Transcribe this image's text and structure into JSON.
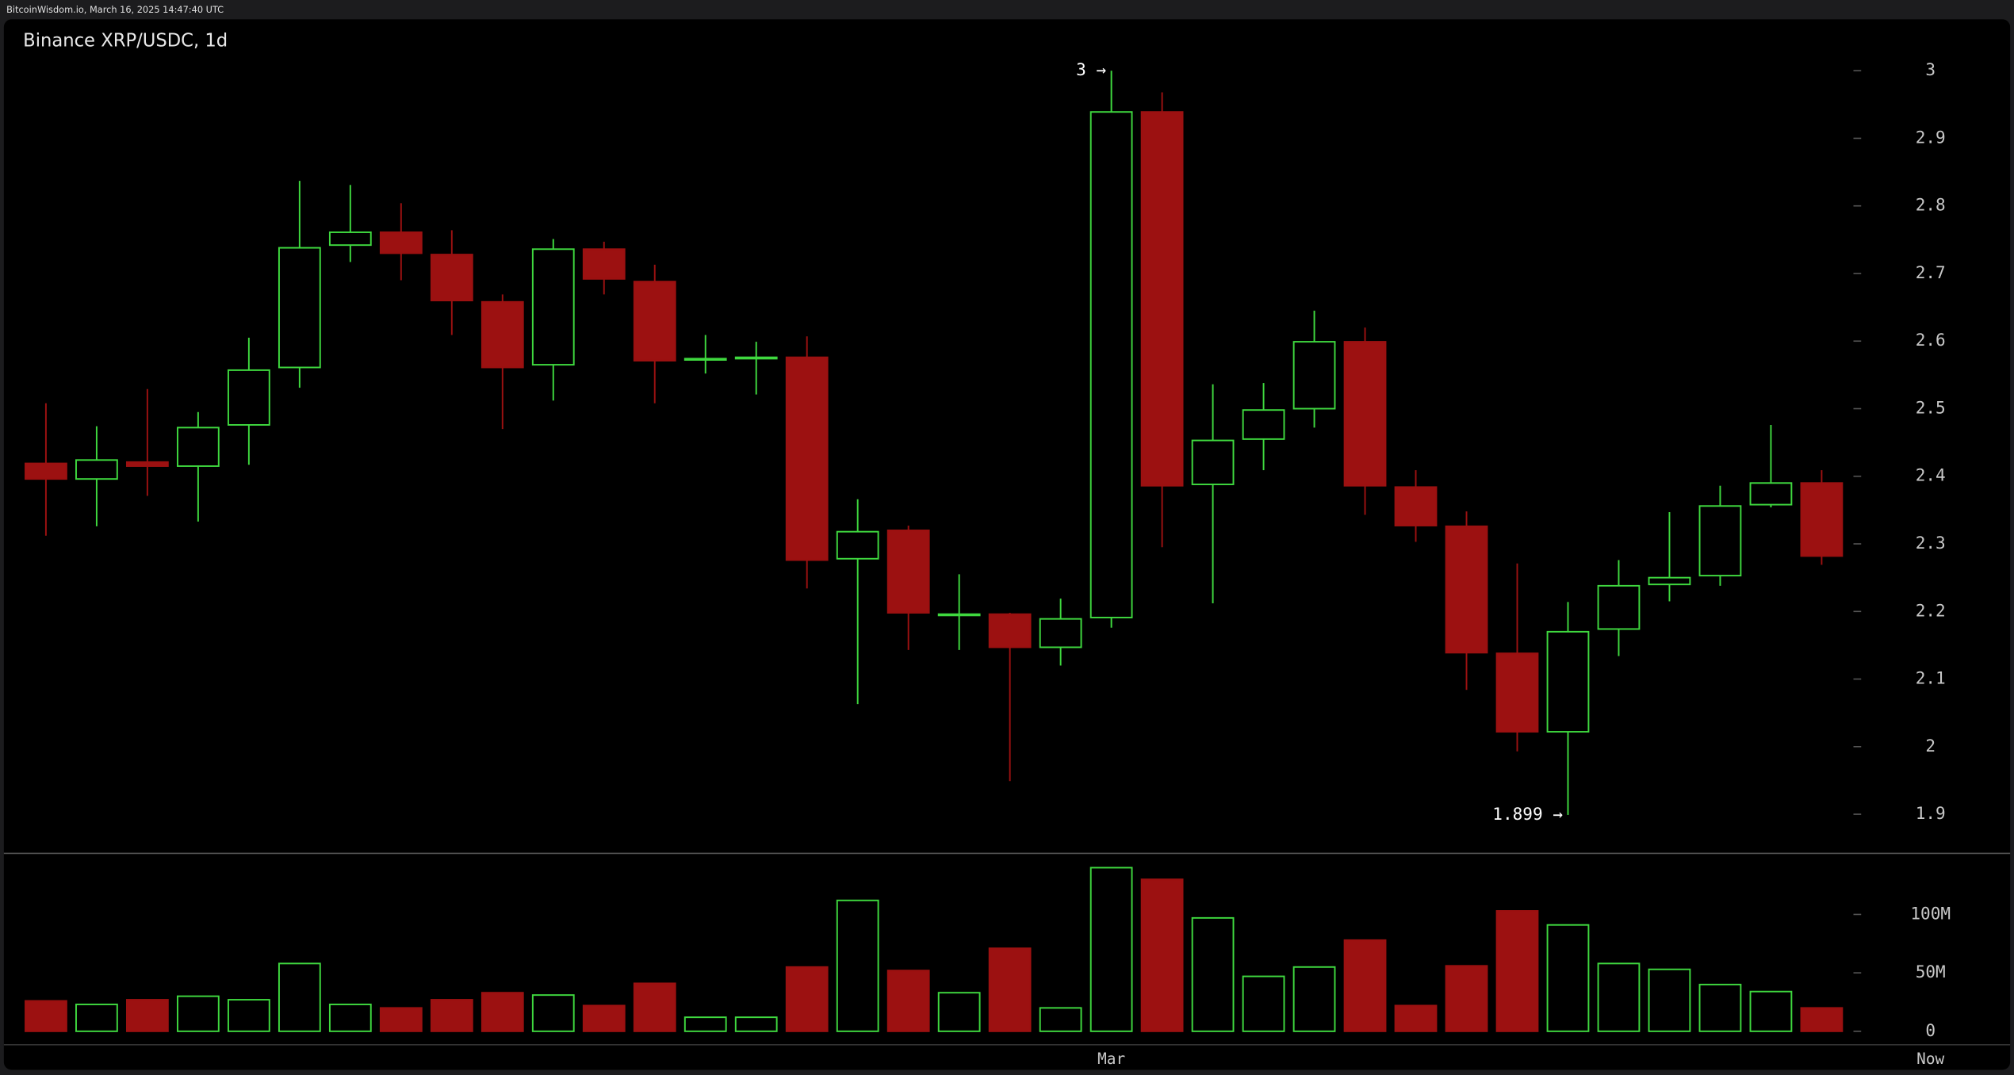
{
  "header": "BitcoinWisdom.io, March 16, 2025 14:47:40 UTC",
  "chart_data": {
    "type": "candlestick",
    "title": "Binance XRP/USDC, 1d",
    "categories": [
      null,
      null,
      null,
      null,
      null,
      null,
      null,
      null,
      null,
      null,
      null,
      null,
      null,
      null,
      null,
      null,
      null,
      null,
      null,
      null,
      null,
      "Mar",
      null,
      null,
      null,
      null,
      null,
      null,
      null,
      null,
      null,
      null,
      null,
      null,
      null,
      null
    ],
    "now_label": "Now",
    "open": [
      2.419,
      2.396,
      2.421,
      2.415,
      2.476,
      2.561,
      2.742,
      2.761,
      2.728,
      2.658,
      2.565,
      2.736,
      2.688,
      2.573,
      2.574,
      2.576,
      2.278,
      2.32,
      2.195,
      2.196,
      2.147,
      2.191,
      2.939,
      2.388,
      2.455,
      2.5,
      2.599,
      2.384,
      2.326,
      2.138,
      2.022,
      2.174,
      2.24,
      2.253,
      2.358,
      2.39
    ],
    "high": [
      2.508,
      2.474,
      2.529,
      2.495,
      2.605,
      2.837,
      2.831,
      2.804,
      2.764,
      2.669,
      2.751,
      2.747,
      2.713,
      2.609,
      2.599,
      2.607,
      2.366,
      2.327,
      2.255,
      2.198,
      2.219,
      3.0,
      2.968,
      2.536,
      2.538,
      2.645,
      2.62,
      2.409,
      2.348,
      2.271,
      2.214,
      2.276,
      2.347,
      2.386,
      2.476,
      2.409
    ],
    "low": [
      2.312,
      2.326,
      2.371,
      2.333,
      2.417,
      2.531,
      2.717,
      2.69,
      2.609,
      2.47,
      2.512,
      2.669,
      2.508,
      2.552,
      2.521,
      2.234,
      2.063,
      2.143,
      2.143,
      1.949,
      2.12,
      2.176,
      2.295,
      2.212,
      2.409,
      2.472,
      2.343,
      2.303,
      2.084,
      1.993,
      1.899,
      2.134,
      2.215,
      2.238,
      2.354,
      2.269
    ],
    "close": [
      2.396,
      2.424,
      2.415,
      2.472,
      2.557,
      2.738,
      2.761,
      2.73,
      2.66,
      2.561,
      2.736,
      2.692,
      2.571,
      2.574,
      2.576,
      2.276,
      2.318,
      2.198,
      2.196,
      2.147,
      2.189,
      2.939,
      2.386,
      2.453,
      2.498,
      2.599,
      2.386,
      2.327,
      2.139,
      2.022,
      2.17,
      2.238,
      2.25,
      2.356,
      2.39,
      2.282
    ],
    "volume": [
      26000000,
      23000000,
      27000000,
      30000000,
      27000000,
      58000000,
      23000000,
      20000000,
      27000000,
      33000000,
      31000000,
      22000000,
      41000000,
      12000000,
      12000000,
      55000000,
      112000000,
      52000000,
      33000000,
      71000000,
      20000000,
      140000000,
      130000000,
      97000000,
      47000000,
      55000000,
      78000000,
      22000000,
      56000000,
      103000000,
      91000000,
      58000000,
      53000000,
      40000000,
      34000000,
      20000000
    ],
    "up_color": "#3fd93f",
    "down_color": "#9c1111",
    "ylim": [
      1.85,
      3.05
    ],
    "yticks": [
      1.9,
      2,
      2.1,
      2.2,
      2.3,
      2.4,
      2.5,
      2.6,
      2.7,
      2.8,
      2.9,
      3
    ],
    "y2lim": [
      0,
      150000000
    ],
    "y2ticks": [
      0,
      {
        "value": 50000000,
        "label": "50M"
      },
      {
        "value": 100000000,
        "label": "100M"
      }
    ],
    "annotations": [
      "3 →",
      "1.899 →"
    ]
  }
}
